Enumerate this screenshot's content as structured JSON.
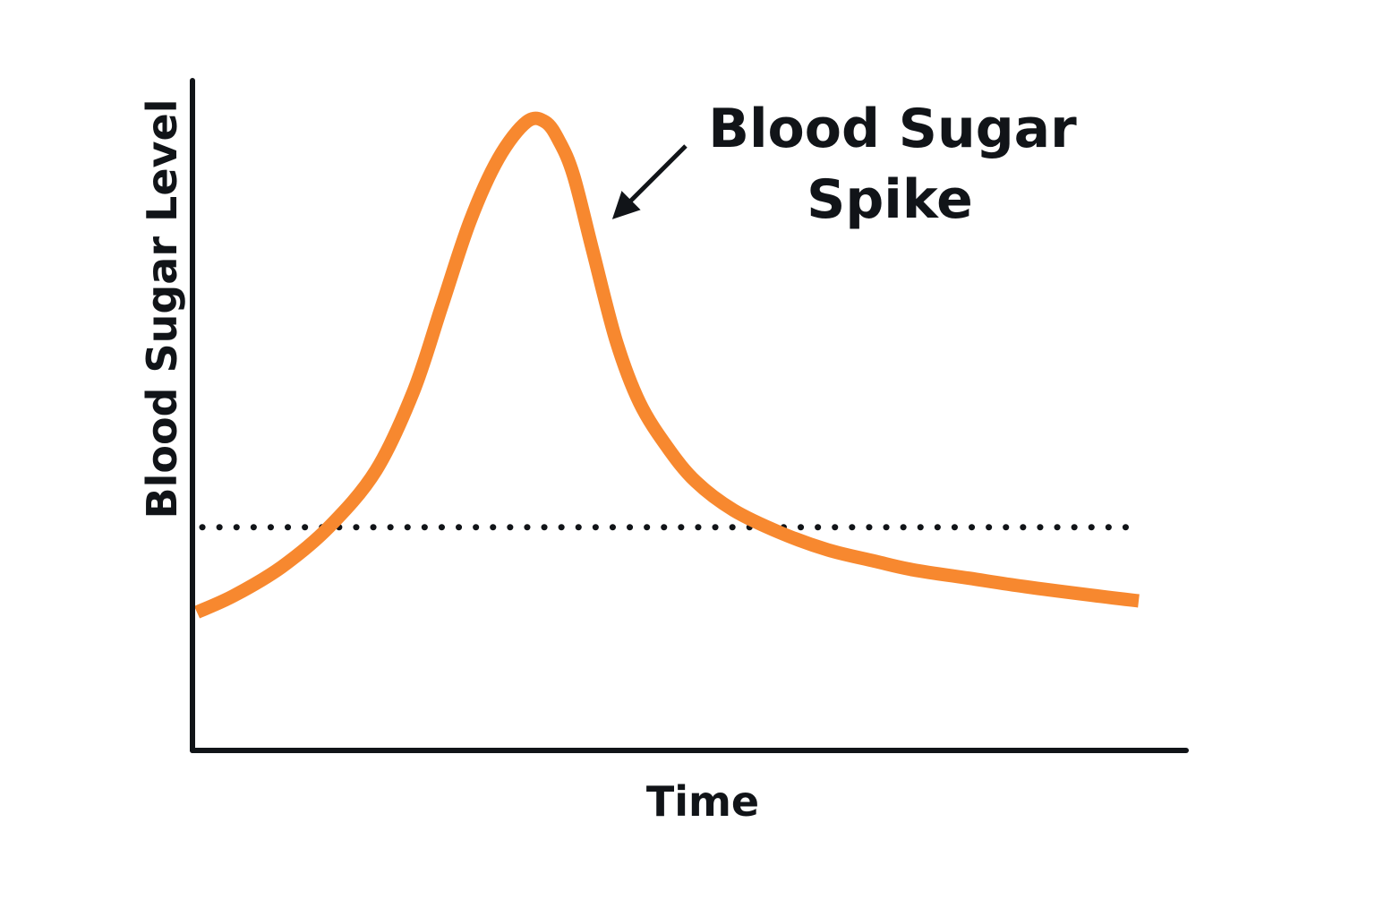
{
  "chart_data": {
    "type": "line",
    "title": "",
    "xlabel": "Time",
    "ylabel": "Blood Sugar Level",
    "xlim": [
      0,
      100
    ],
    "ylim": [
      0,
      100
    ],
    "grid": false,
    "legend": "none",
    "tick_labels": false,
    "series": [
      {
        "color": "#f7882f",
        "x": [
          0,
          4,
          9,
          14,
          19,
          23,
          26,
          29,
          32,
          35,
          37,
          38.5,
          40,
          42,
          44.5,
          47,
          50,
          53,
          57,
          62,
          67,
          72,
          76,
          82,
          88,
          95,
          100
        ],
        "y": [
          13,
          16,
          21,
          28,
          38,
          52,
          67,
          82,
          93,
          99.5,
          99.5,
          96,
          90,
          77,
          61,
          50,
          42,
          36,
          31,
          27,
          24,
          22,
          20.5,
          19,
          17.5,
          16,
          15
        ]
      }
    ],
    "reference_line": {
      "style": "dotted",
      "y": 28,
      "color": "#111418"
    },
    "annotation": {
      "lines": [
        "Blood Sugar",
        "Spike"
      ],
      "points_to": {
        "x": 44.5,
        "y": 83
      }
    }
  }
}
